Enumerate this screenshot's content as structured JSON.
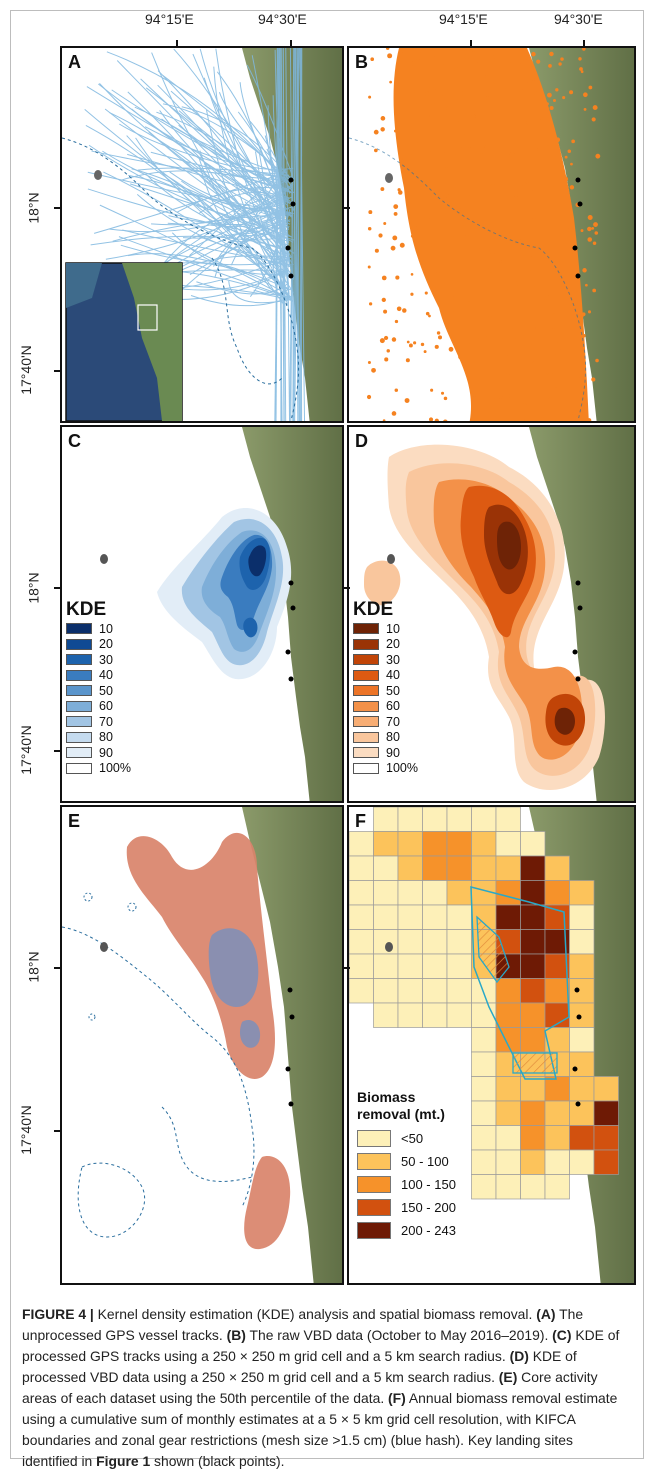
{
  "axes": {
    "lon_labels": [
      "94°15'E",
      "94°30'E"
    ],
    "lat_labels": [
      "18°N",
      "17°40'N"
    ]
  },
  "panels": {
    "A": {
      "label": "A",
      "track_color": "#7fb8e0"
    },
    "B": {
      "label": "B",
      "point_color": "#f58220"
    },
    "C": {
      "label": "C"
    },
    "D": {
      "label": "D"
    },
    "E": {
      "label": "E",
      "gps_core_color": "#8a8fb0",
      "vbd_core_color": "#d9836a"
    },
    "F": {
      "label": "F"
    }
  },
  "kde_legend": {
    "title": "KDE",
    "levels": [
      "10",
      "20",
      "30",
      "40",
      "50",
      "60",
      "70",
      "80",
      "90",
      "100%"
    ],
    "blue_colors": [
      "#0b2f6b",
      "#0f4a94",
      "#1d63ad",
      "#3a7cbf",
      "#5a95cc",
      "#7eaed8",
      "#a2c5e4",
      "#c5dbef",
      "#e2edf7",
      "#ffffff"
    ],
    "orange_colors": [
      "#6e2306",
      "#9a3306",
      "#c14407",
      "#dd5a12",
      "#ec7427",
      "#f39149",
      "#f7ad74",
      "#f9c69d",
      "#fbdcc1",
      "#ffffff"
    ]
  },
  "biomass_legend": {
    "title_line1": "Biomass",
    "title_line2": "removal (mt.)",
    "classes": [
      {
        "label": "<50",
        "color": "#fdf0b8"
      },
      {
        "label": "50 - 100",
        "color": "#fcc35b"
      },
      {
        "label": "100 - 150",
        "color": "#f6922a"
      },
      {
        "label": "150 - 200",
        "color": "#d2510f"
      },
      {
        "label": "200 - 243",
        "color": "#6e1a05"
      }
    ]
  },
  "colors": {
    "land": "#7e8a5d",
    "land_dark": "#5c6b40",
    "landing_site": "#000000",
    "contour": "#2a6e9e",
    "kifca": "#29a8c8"
  },
  "caption": {
    "fig": "FIGURE 4 |",
    "intro": " Kernel density estimation (KDE) analysis and spatial biomass removal. ",
    "a_tag": "(A)",
    "a_text": " The unprocessed GPS vessel tracks. ",
    "b_tag": "(B)",
    "b_text": " The raw VBD data (October to May 2016–2019). ",
    "c_tag": "(C)",
    "c_text": " KDE of processed GPS tracks using a 250 × 250 m grid cell and a 5 km search radius. ",
    "d_tag": "(D)",
    "d_text": " KDE of processed VBD data using a 250 × 250 m grid cell and a 5 km search radius. ",
    "e_tag": "(E)",
    "e_text": " Core activity areas of each dataset using the 50th percentile of the data. ",
    "f_tag": "(F)",
    "f_text": " Annual biomass removal estimate using a cumulative sum of monthly estimates at a 5 × 5 km grid cell resolution, with KIFCA boundaries and zonal gear restrictions (mesh size >1.5 cm) (blue hash). Key landing sites identified in ",
    "fig1": "Figure 1",
    "end": " shown (black points)."
  }
}
